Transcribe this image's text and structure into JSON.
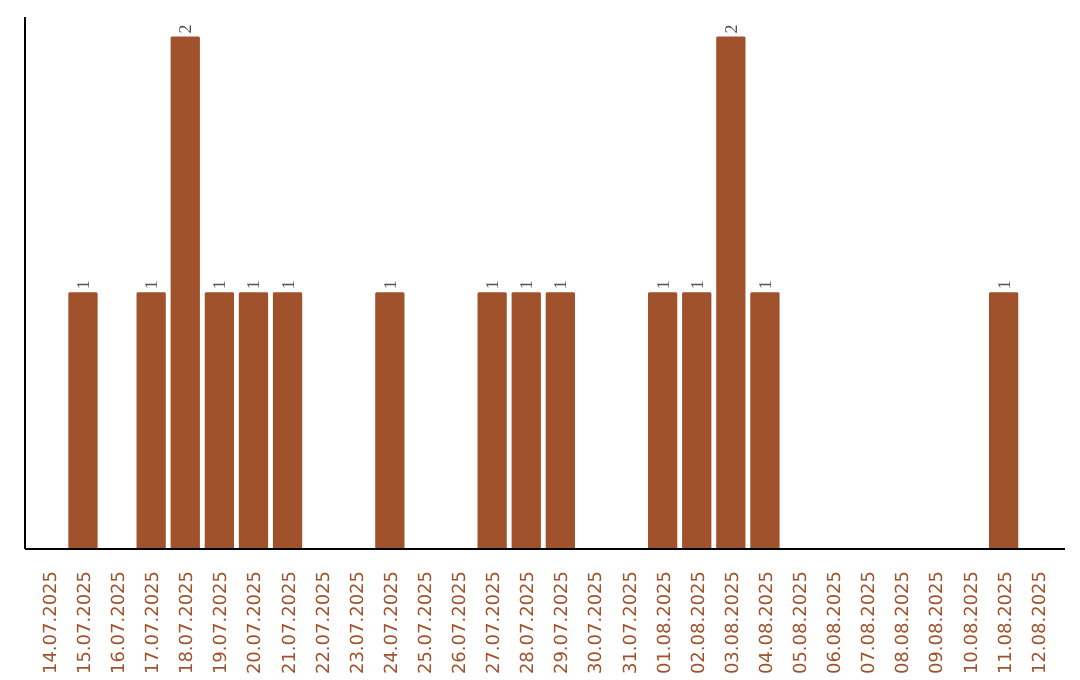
{
  "chart_data": {
    "type": "bar",
    "categories": [
      "14.07.2025",
      "15.07.2025",
      "16.07.2025",
      "17.07.2025",
      "18.07.2025",
      "19.07.2025",
      "20.07.2025",
      "21.07.2025",
      "22.07.2025",
      "23.07.2025",
      "24.07.2025",
      "25.07.2025",
      "26.07.2025",
      "27.07.2025",
      "28.07.2025",
      "29.07.2025",
      "30.07.2025",
      "31.07.2025",
      "01.08.2025",
      "02.08.2025",
      "03.08.2025",
      "04.08.2025",
      "05.08.2025",
      "06.08.2025",
      "07.08.2025",
      "08.08.2025",
      "09.08.2025",
      "10.08.2025",
      "11.08.2025",
      "12.08.2025"
    ],
    "values": [
      null,
      1,
      null,
      1,
      2,
      1,
      1,
      1,
      null,
      null,
      1,
      null,
      null,
      1,
      1,
      1,
      null,
      null,
      1,
      1,
      2,
      1,
      null,
      null,
      null,
      null,
      null,
      null,
      1,
      null
    ],
    "color": "#a0522d",
    "data_labels": true,
    "tick_labels": "x"
  }
}
